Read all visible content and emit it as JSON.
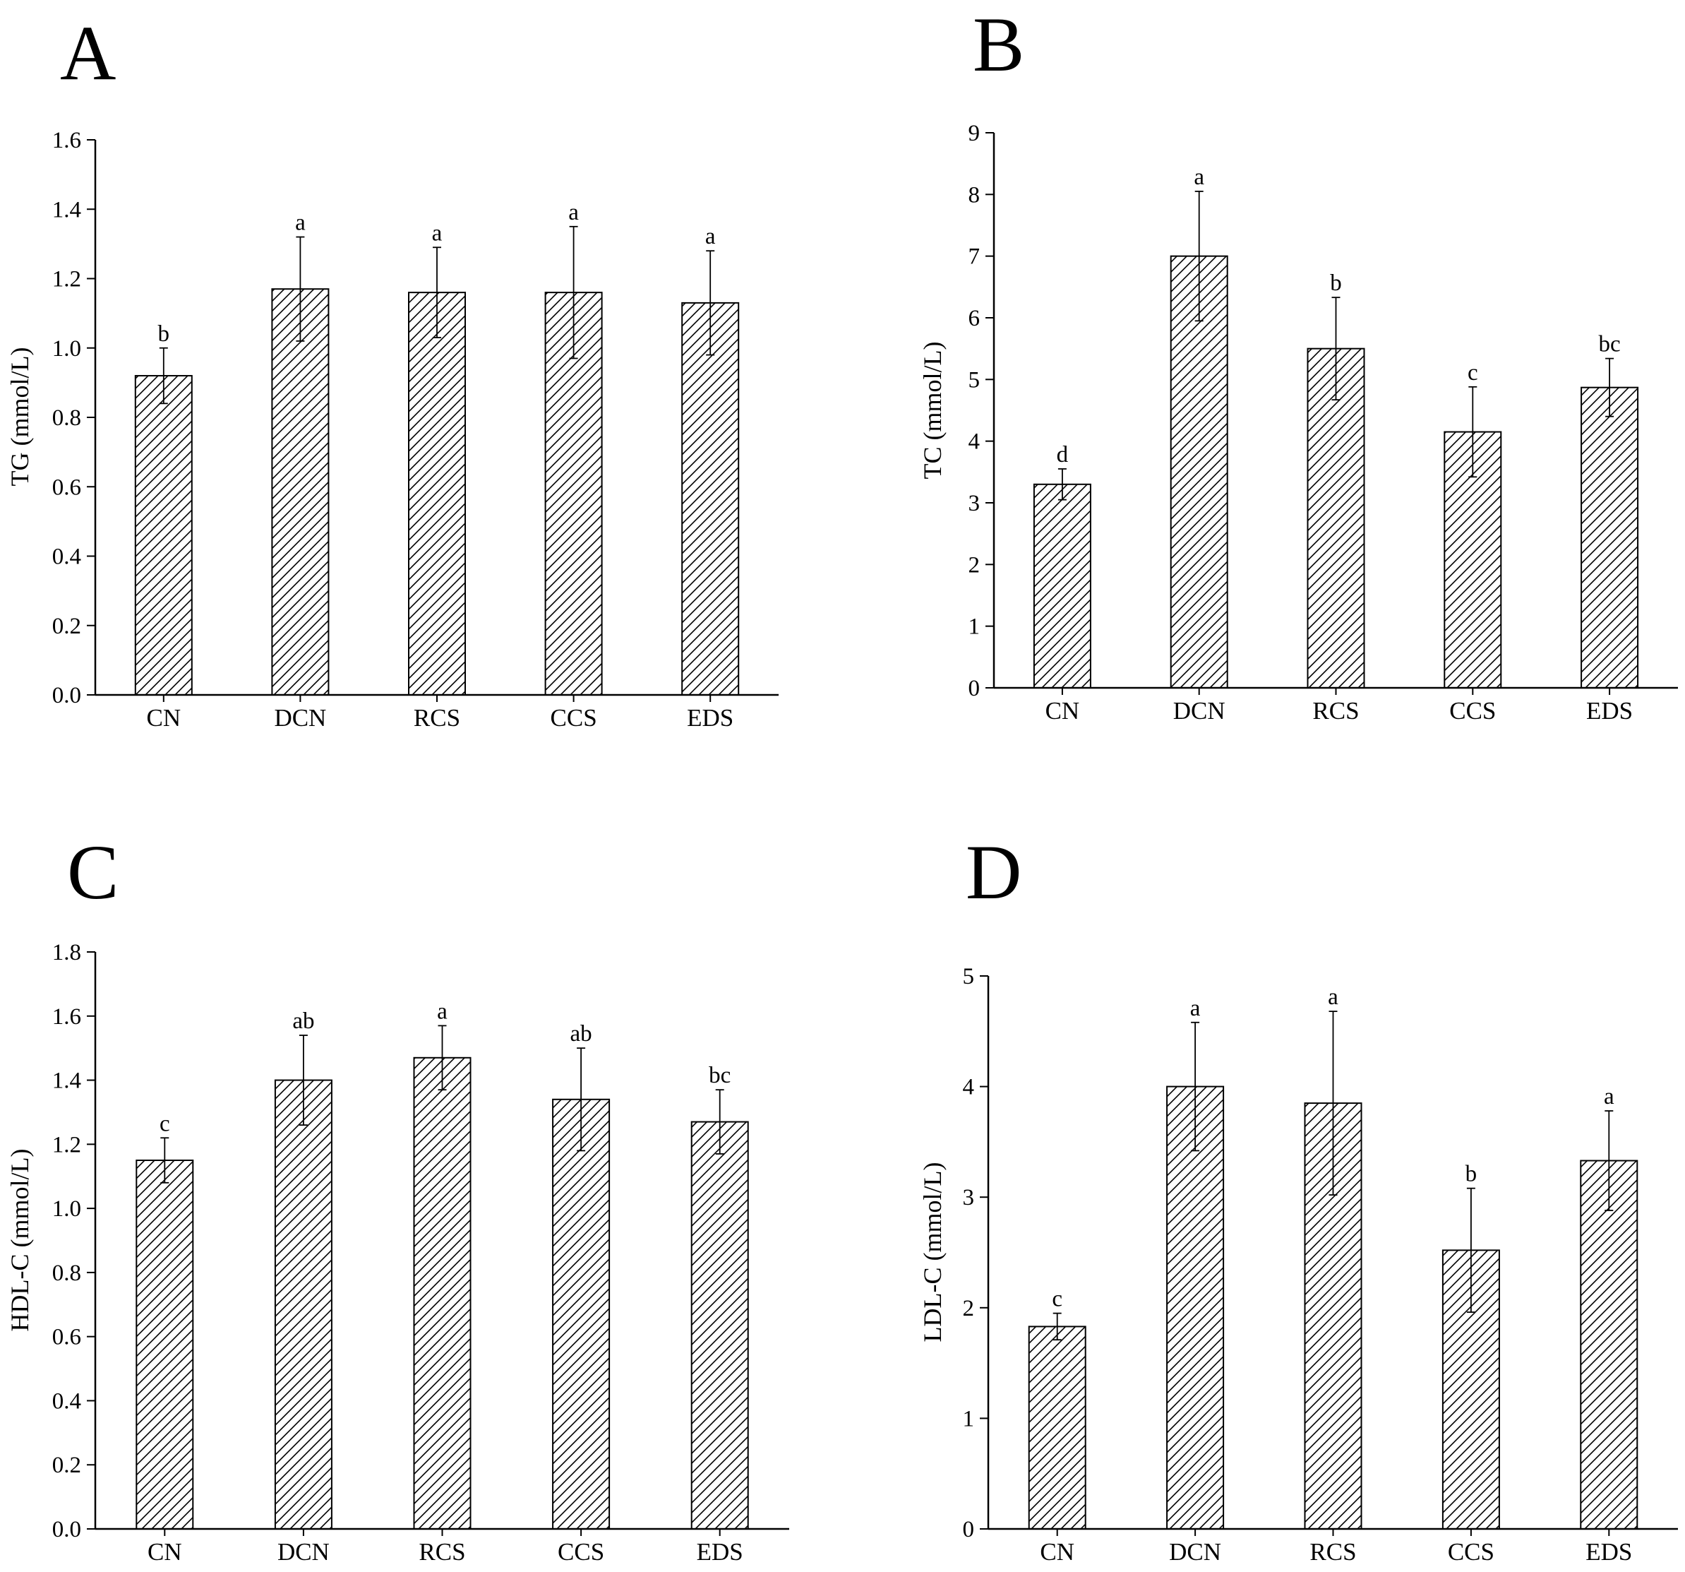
{
  "figure": {
    "colors": {
      "ink": "#000000",
      "bar_fill": "#ffffff",
      "hatch": "#000000"
    }
  },
  "chart_data": [
    {
      "panel": "A",
      "type": "bar",
      "ylabel": "TG (mmol/L)",
      "categories": [
        "CN",
        "DCN",
        "RCS",
        "CCS",
        "EDS"
      ],
      "values": [
        0.92,
        1.17,
        1.16,
        1.16,
        1.13
      ],
      "errors": [
        0.08,
        0.15,
        0.13,
        0.19,
        0.15
      ],
      "significance": [
        "b",
        "a",
        "a",
        "a",
        "a"
      ],
      "ylim": [
        0,
        1.6
      ],
      "yticks": [
        0.0,
        0.2,
        0.4,
        0.6,
        0.8,
        1.0,
        1.2,
        1.4,
        1.6
      ],
      "ytick_labels": [
        "0.0",
        "0.2",
        "0.4",
        "0.6",
        "0.8",
        "1.0",
        "1.2",
        "1.4",
        "1.6"
      ],
      "pattern": "diagonal-hatch"
    },
    {
      "panel": "B",
      "type": "bar",
      "ylabel": "TC (mmol/L)",
      "categories": [
        "CN",
        "DCN",
        "RCS",
        "CCS",
        "EDS"
      ],
      "values": [
        3.3,
        7.0,
        5.5,
        4.15,
        4.87
      ],
      "errors": [
        0.25,
        1.05,
        0.83,
        0.73,
        0.47
      ],
      "significance": [
        "d",
        "a",
        "b",
        "c",
        "bc"
      ],
      "ylim": [
        0,
        9
      ],
      "yticks": [
        0,
        1,
        2,
        3,
        4,
        5,
        6,
        7,
        8,
        9
      ],
      "ytick_labels": [
        "0",
        "1",
        "2",
        "3",
        "4",
        "5",
        "6",
        "7",
        "8",
        "9"
      ],
      "pattern": "diagonal-hatch"
    },
    {
      "panel": "C",
      "type": "bar",
      "ylabel": "HDL-C (mmol/L)",
      "categories": [
        "CN",
        "DCN",
        "RCS",
        "CCS",
        "EDS"
      ],
      "values": [
        1.15,
        1.4,
        1.47,
        1.34,
        1.27
      ],
      "errors": [
        0.07,
        0.14,
        0.1,
        0.16,
        0.1
      ],
      "significance": [
        "c",
        "ab",
        "a",
        "ab",
        "bc"
      ],
      "ylim": [
        0,
        1.8
      ],
      "yticks": [
        0.0,
        0.2,
        0.4,
        0.6,
        0.8,
        1.0,
        1.2,
        1.4,
        1.6,
        1.8
      ],
      "ytick_labels": [
        "0.0",
        "0.2",
        "0.4",
        "0.6",
        "0.8",
        "1.0",
        "1.2",
        "1.4",
        "1.6",
        "1.8"
      ],
      "pattern": "diagonal-hatch"
    },
    {
      "panel": "D",
      "type": "bar",
      "ylabel": "LDL-C (mmol/L)",
      "categories": [
        "CN",
        "DCN",
        "RCS",
        "CCS",
        "EDS"
      ],
      "values": [
        1.83,
        4.0,
        3.85,
        2.52,
        3.33
      ],
      "errors": [
        0.12,
        0.58,
        0.83,
        0.56,
        0.45
      ],
      "significance": [
        "c",
        "a",
        "a",
        "b",
        "a"
      ],
      "ylim": [
        0,
        5
      ],
      "yticks": [
        0,
        1,
        2,
        3,
        4,
        5
      ],
      "ytick_labels": [
        "0",
        "1",
        "2",
        "3",
        "4",
        "5"
      ],
      "pattern": "diagonal-hatch"
    }
  ]
}
